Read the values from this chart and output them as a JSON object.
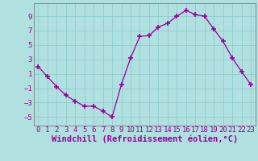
{
  "x": [
    0,
    1,
    2,
    3,
    4,
    5,
    6,
    7,
    8,
    9,
    10,
    11,
    12,
    13,
    14,
    15,
    16,
    17,
    18,
    19,
    20,
    21,
    22,
    23
  ],
  "y": [
    2.0,
    0.6,
    -0.8,
    -2.0,
    -2.8,
    -3.5,
    -3.5,
    -4.2,
    -5.0,
    -0.5,
    3.2,
    6.2,
    6.3,
    7.5,
    8.0,
    9.0,
    9.8,
    9.2,
    9.0,
    7.2,
    5.5,
    3.2,
    1.3,
    -0.5
  ],
  "line_color": "#990099",
  "marker": "+",
  "marker_size": 4,
  "background_color": "#b0e0e0",
  "grid_color": "#90cccc",
  "axis_color": "#555555",
  "xlabel": "Windchill (Refroidissement éolien,°C)",
  "ylabel": "",
  "xlim": [
    -0.5,
    23.5
  ],
  "ylim": [
    -6.2,
    10.8
  ],
  "yticks": [
    -5,
    -3,
    -1,
    1,
    3,
    5,
    7,
    9
  ],
  "xticks": [
    0,
    1,
    2,
    3,
    4,
    5,
    6,
    7,
    8,
    9,
    10,
    11,
    12,
    13,
    14,
    15,
    16,
    17,
    18,
    19,
    20,
    21,
    22,
    23
  ],
  "font_color": "#990099",
  "tick_fontsize": 6.5,
  "xlabel_fontsize": 7.5
}
